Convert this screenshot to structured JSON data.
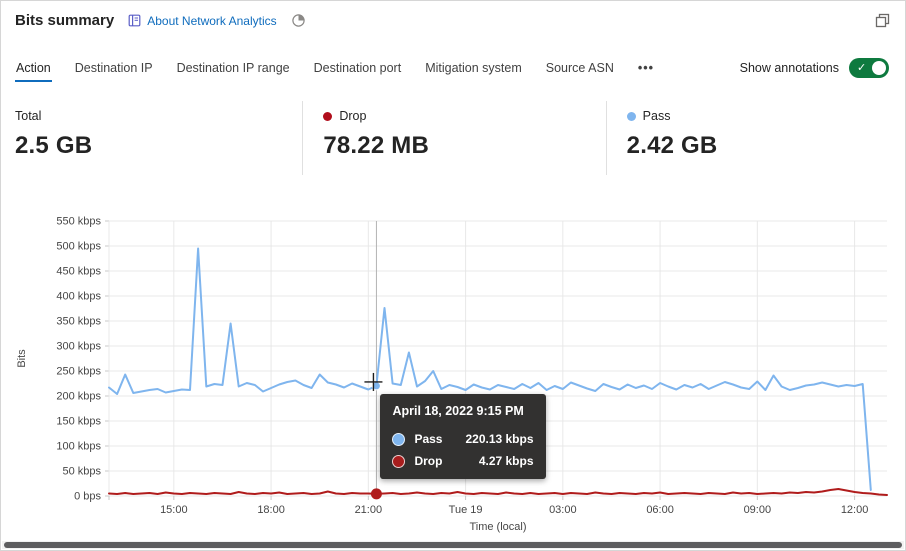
{
  "header": {
    "title": "Bits summary",
    "about_link": "About Network Analytics"
  },
  "window": {
    "restore_icon": "restore-window"
  },
  "tabs": {
    "items": [
      "Action",
      "Destination IP",
      "Destination IP range",
      "Destination port",
      "Mitigation system",
      "Source ASN"
    ],
    "selected": 0,
    "overflow": "•••"
  },
  "annotations": {
    "label": "Show annotations",
    "enabled": true,
    "on_color": "#0e7a3f"
  },
  "stats": {
    "cards": [
      {
        "label": "Total",
        "value": "2.5 GB"
      },
      {
        "label": "Drop",
        "value": "78.22 MB",
        "dot_color": "#b10e1c"
      },
      {
        "label": "Pass",
        "value": "2.42 GB",
        "dot_color": "#7fb5ee"
      }
    ]
  },
  "chart_data": {
    "type": "line",
    "ylabel": "Bits",
    "xlabel": "Time (local)",
    "ylim": [
      0,
      550
    ],
    "grid": true,
    "y_ticks": [
      {
        "v": 0,
        "label": "0 bps"
      },
      {
        "v": 50,
        "label": "50 kbps"
      },
      {
        "v": 100,
        "label": "100 kbps"
      },
      {
        "v": 150,
        "label": "150 kbps"
      },
      {
        "v": 200,
        "label": "200 kbps"
      },
      {
        "v": 250,
        "label": "250 kbps"
      },
      {
        "v": 300,
        "label": "300 kbps"
      },
      {
        "v": 350,
        "label": "350 kbps"
      },
      {
        "v": 400,
        "label": "400 kbps"
      },
      {
        "v": 450,
        "label": "450 kbps"
      },
      {
        "v": 500,
        "label": "500 kbps"
      },
      {
        "v": 550,
        "label": "550 kbps"
      }
    ],
    "x_ticks": [
      {
        "t": 0,
        "label": ""
      },
      {
        "t": 120,
        "label": "15:00"
      },
      {
        "t": 300,
        "label": "18:00"
      },
      {
        "t": 480,
        "label": "21:00"
      },
      {
        "t": 660,
        "label": "Tue 19"
      },
      {
        "t": 840,
        "label": "03:00"
      },
      {
        "t": 1020,
        "label": "06:00"
      },
      {
        "t": 1200,
        "label": "09:00"
      },
      {
        "t": 1380,
        "label": "12:00"
      }
    ],
    "series": [
      {
        "name": "Pass",
        "color": "#7fb5ee",
        "start": 0,
        "step": 15,
        "values": [
          217,
          204,
          243,
          206,
          209,
          212,
          214,
          207,
          210,
          213,
          212,
          495,
          219,
          224,
          222,
          345,
          219,
          226,
          222,
          209,
          216,
          223,
          228,
          231,
          222,
          216,
          243,
          227,
          223,
          217,
          225,
          219,
          213,
          220.13,
          376,
          225,
          222,
          287,
          219,
          230,
          250,
          214,
          222,
          218,
          212,
          223,
          217,
          213,
          222,
          218,
          214,
          224,
          216,
          226,
          212,
          220,
          214,
          227,
          221,
          215,
          210,
          224,
          218,
          213,
          223,
          216,
          221,
          214,
          226,
          219,
          213,
          222,
          217,
          224,
          214,
          221,
          228,
          223,
          217,
          214,
          229,
          212,
          241,
          219,
          212,
          216,
          221,
          223,
          227,
          223,
          219,
          222,
          220,
          224,
          12
        ]
      },
      {
        "name": "Drop",
        "color": "#b01c1c",
        "start": 0,
        "step": 15,
        "values": [
          5,
          4,
          6,
          4,
          5,
          6,
          4,
          7,
          5,
          4,
          6,
          5,
          4,
          6,
          5,
          4,
          8,
          5,
          4,
          6,
          5,
          7,
          4,
          5,
          6,
          4,
          5,
          9,
          5,
          4,
          6,
          5,
          5,
          4.27,
          5,
          6,
          4,
          5,
          7,
          5,
          4,
          6,
          5,
          8,
          5,
          4,
          6,
          5,
          4,
          7,
          5,
          4,
          6,
          4,
          5,
          6,
          4,
          6,
          5,
          4,
          7,
          5,
          4,
          6,
          5,
          4,
          6,
          5,
          7,
          4,
          5,
          6,
          5,
          4,
          6,
          5,
          4,
          7,
          5,
          6,
          4,
          5,
          6,
          5,
          7,
          6,
          8,
          7,
          9,
          12,
          14,
          11,
          8,
          6,
          5,
          3,
          2
        ]
      }
    ],
    "hover": {
      "t": 495,
      "pass": 220.13,
      "drop": 4.27
    },
    "tooltip": {
      "title": "April 18, 2022 9:15 PM",
      "rows": [
        {
          "name": "Pass",
          "value": "220.13 kbps",
          "color": "#7fb5ee"
        },
        {
          "name": "Drop",
          "value": "4.27 kbps",
          "color": "#a81d1d"
        }
      ]
    }
  }
}
